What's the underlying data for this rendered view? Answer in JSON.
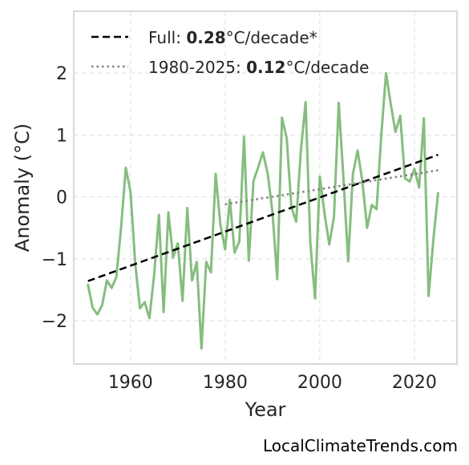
{
  "chart_data": {
    "type": "line",
    "xlabel": "Year",
    "ylabel": "Anomaly (°C)",
    "xlim": [
      1948,
      2029
    ],
    "ylim": [
      -2.7,
      3.0
    ],
    "xticks": [
      1960,
      1980,
      2000,
      2020
    ],
    "yticks": [
      -2,
      -1,
      0,
      1,
      2
    ],
    "ytick_labels": [
      "−2",
      "−1",
      "0",
      "1",
      "2"
    ],
    "grid": true,
    "legend_position": "top-left",
    "series": [
      {
        "color": "#86bd7f",
        "x": [
          1951,
          1952,
          1953,
          1954,
          1955,
          1956,
          1957,
          1958,
          1959,
          1960,
          1961,
          1962,
          1963,
          1964,
          1965,
          1966,
          1967,
          1968,
          1969,
          1970,
          1971,
          1972,
          1973,
          1974,
          1975,
          1976,
          1977,
          1978,
          1979,
          1980,
          1981,
          1982,
          1983,
          1984,
          1985,
          1986,
          1987,
          1988,
          1989,
          1990,
          1991,
          1992,
          1993,
          1994,
          1995,
          1996,
          1997,
          1998,
          1999,
          2000,
          2001,
          2002,
          2003,
          2004,
          2005,
          2006,
          2007,
          2008,
          2009,
          2010,
          2011,
          2012,
          2013,
          2014,
          2015,
          2016,
          2017,
          2018,
          2019,
          2020,
          2021,
          2022,
          2023,
          2024,
          2025
        ],
        "values": [
          -1.42,
          -1.79,
          -1.9,
          -1.75,
          -1.35,
          -1.47,
          -1.3,
          -0.5,
          0.47,
          0.08,
          -1.08,
          -1.8,
          -1.7,
          -1.96,
          -1.25,
          -0.29,
          -1.86,
          -0.25,
          -0.98,
          -0.75,
          -1.68,
          -0.18,
          -1.35,
          -1.05,
          -2.45,
          -1.05,
          -1.22,
          0.37,
          -0.45,
          -0.85,
          -0.05,
          -0.9,
          -0.72,
          0.97,
          -1.03,
          0.26,
          0.48,
          0.72,
          0.37,
          -0.25,
          -1.33,
          1.28,
          0.95,
          -0.17,
          -0.4,
          0.75,
          1.53,
          -0.75,
          -1.64,
          0.33,
          -0.27,
          -0.77,
          -0.32,
          1.52,
          0.3,
          -1.04,
          0.37,
          0.75,
          0.25,
          -0.5,
          -0.13,
          -0.2,
          1.0,
          2.0,
          1.5,
          1.05,
          1.31,
          0.3,
          0.25,
          0.45,
          0.15,
          1.27,
          -1.6,
          -0.7,
          0.06
        ]
      },
      {
        "name": "Full",
        "trend_label": "0.28",
        "unit_suffix": "°C/decade*",
        "style": "dashed",
        "color": "#000000",
        "x": [
          1951,
          2025
        ],
        "values": [
          -1.36,
          0.68
        ]
      },
      {
        "name": "1980-2025",
        "trend_label": "0.12",
        "unit_suffix": "°C/decade",
        "style": "dotted",
        "color": "#808080",
        "x": [
          1980,
          2025
        ],
        "values": [
          -0.12,
          0.43
        ]
      }
    ]
  },
  "watermark": "LocalClimateTrends.com"
}
